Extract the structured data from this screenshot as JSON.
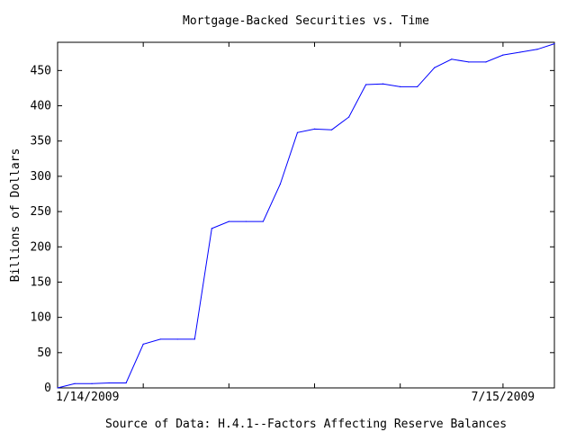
{
  "chart_data": {
    "type": "line",
    "title": "Mortgage-Backed Securities vs. Time",
    "xlabel": "Source of Data: H.4.1--Factors Affecting Reserve Balances",
    "ylabel": "Billions of Dollars",
    "x_tick_labels": [
      {
        "label": "1/14/2009",
        "date": "2009-01-14"
      },
      {
        "label": "7/15/2009",
        "date": "2009-07-15"
      }
    ],
    "x_range": [
      "2009-01-14",
      "2009-08-05"
    ],
    "x_minor_ticks": [
      "2009-02-18",
      "2009-03-25",
      "2009-04-29",
      "2009-06-03"
    ],
    "ylim": [
      0,
      490
    ],
    "yticks": [
      0,
      50,
      100,
      150,
      200,
      250,
      300,
      350,
      400,
      450
    ],
    "grid": false,
    "line_color": "#0000ff",
    "series": [
      {
        "x": [
          "2009-01-14",
          "2009-01-21",
          "2009-01-28",
          "2009-02-04",
          "2009-02-11",
          "2009-02-18",
          "2009-02-25",
          "2009-03-04",
          "2009-03-11",
          "2009-03-18",
          "2009-03-25",
          "2009-04-01",
          "2009-04-08",
          "2009-04-15",
          "2009-04-22",
          "2009-04-29",
          "2009-05-06",
          "2009-05-13",
          "2009-05-20",
          "2009-05-27",
          "2009-06-03",
          "2009-06-10",
          "2009-06-17",
          "2009-06-24",
          "2009-07-01",
          "2009-07-08",
          "2009-07-15",
          "2009-07-22",
          "2009-07-29",
          "2009-08-05"
        ],
        "values": [
          0,
          6,
          6,
          7,
          7,
          62,
          69,
          69,
          69,
          226,
          236,
          236,
          236,
          289,
          362,
          367,
          366,
          384,
          430,
          431,
          427,
          427,
          454,
          466,
          462,
          462,
          472,
          476,
          480,
          488
        ]
      }
    ]
  }
}
